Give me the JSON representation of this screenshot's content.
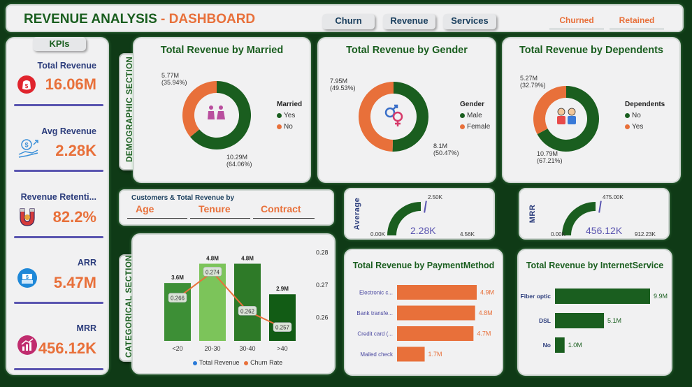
{
  "header": {
    "title_main": "REVENUE ANALYSIS",
    "title_sep": " - ",
    "title_accent": "DASHBOARD",
    "nav": [
      "Churn",
      "Revenue",
      "Services"
    ],
    "filters": [
      "Churned",
      "Retained"
    ]
  },
  "kpis": {
    "header": "KPIs",
    "items": [
      {
        "label": "Total Revenue",
        "value": "16.06M",
        "icon": "money-bag-icon"
      },
      {
        "label": "Avg Revenue",
        "value": "2.28K",
        "icon": "hand-coins-icon"
      },
      {
        "label": "Revenue Retenti...",
        "value": "82.2%",
        "icon": "magnet-icon"
      },
      {
        "label": "ARR",
        "value": "5.47M",
        "icon": "cash-register-icon"
      },
      {
        "label": "MRR",
        "value": "456.12K",
        "icon": "growth-chart-icon"
      }
    ]
  },
  "sections": {
    "demographic": "DEMOGRAPHIC SECTION",
    "categorical": "CATEGORICAL SECTION"
  },
  "colors": {
    "green": "#1a5e1f",
    "orange": "#e8703a",
    "purple": "#5a55b0",
    "background": "#0f3a16"
  },
  "category_filter": {
    "title": "Customers & Total Revenue by",
    "options": [
      "Age",
      "Tenure",
      "Contract"
    ]
  },
  "gauges": [
    {
      "label": "Average",
      "min": "0.00K",
      "max": "4.56K",
      "target": "2.50K",
      "value": "2.28K",
      "fraction": 0.5
    },
    {
      "label": "MRR",
      "min": "0.00K",
      "max": "912.23K",
      "target": "475.00K",
      "value": "456.12K",
      "fraction": 0.5
    }
  ],
  "chart_data": [
    {
      "type": "pie",
      "title": "Total Revenue by Married",
      "legend_title": "Married",
      "categories": [
        "Yes",
        "No"
      ],
      "values": [
        10.29,
        5.77
      ],
      "labels": [
        "10.29M",
        "5.77M"
      ],
      "percents": [
        "(64.06%)",
        "(35.94%)"
      ],
      "icon": "couple-icon"
    },
    {
      "type": "pie",
      "title": "Total Revenue by Gender",
      "legend_title": "Gender",
      "categories": [
        "Male",
        "Female"
      ],
      "values": [
        8.1,
        7.95
      ],
      "labels": [
        "8.1M",
        "7.95M"
      ],
      "percents": [
        "(50.47%)",
        "(49.53%)"
      ],
      "icon": "gender-symbols-icon"
    },
    {
      "type": "pie",
      "title": "Total Revenue by Dependents",
      "legend_title": "Dependents",
      "categories": [
        "No",
        "Yes"
      ],
      "values": [
        10.79,
        5.27
      ],
      "labels": [
        "10.79M",
        "5.27M"
      ],
      "percents": [
        "(67.21%)",
        "(32.79%)"
      ],
      "icon": "family-icon"
    },
    {
      "type": "bar",
      "title": "",
      "categories": [
        "<20",
        "20-30",
        "30-40",
        ">40"
      ],
      "series": [
        {
          "name": "Total Revenue",
          "values": [
            3.6,
            4.8,
            4.8,
            2.9
          ],
          "labels": [
            "3.6M",
            "4.8M",
            "4.8M",
            "2.9M"
          ]
        },
        {
          "name": "Churn Rate",
          "values": [
            0.266,
            0.274,
            0.262,
            0.257
          ],
          "labels": [
            "0.266",
            "0.274",
            "0.262",
            "0.257"
          ]
        }
      ],
      "y2_ticks": [
        "0.28",
        "0.27",
        "0.26"
      ],
      "y2lim": [
        0.252,
        0.282
      ]
    },
    {
      "type": "bar",
      "title": "Total Revenue by PaymentMethod",
      "categories": [
        "Electronic c...",
        "Bank transfe...",
        "Credit card (...",
        "Mailed check"
      ],
      "values": [
        4.9,
        4.8,
        4.7,
        1.7
      ],
      "labels": [
        "4.9M",
        "4.8M",
        "4.7M",
        "1.7M"
      ]
    },
    {
      "type": "bar",
      "title": "Total Revenue by InternetService",
      "categories": [
        "Fiber optic",
        "DSL",
        "No"
      ],
      "values": [
        9.9,
        5.1,
        1.0
      ],
      "labels": [
        "9.9M",
        "5.1M",
        "1.0M"
      ]
    }
  ]
}
